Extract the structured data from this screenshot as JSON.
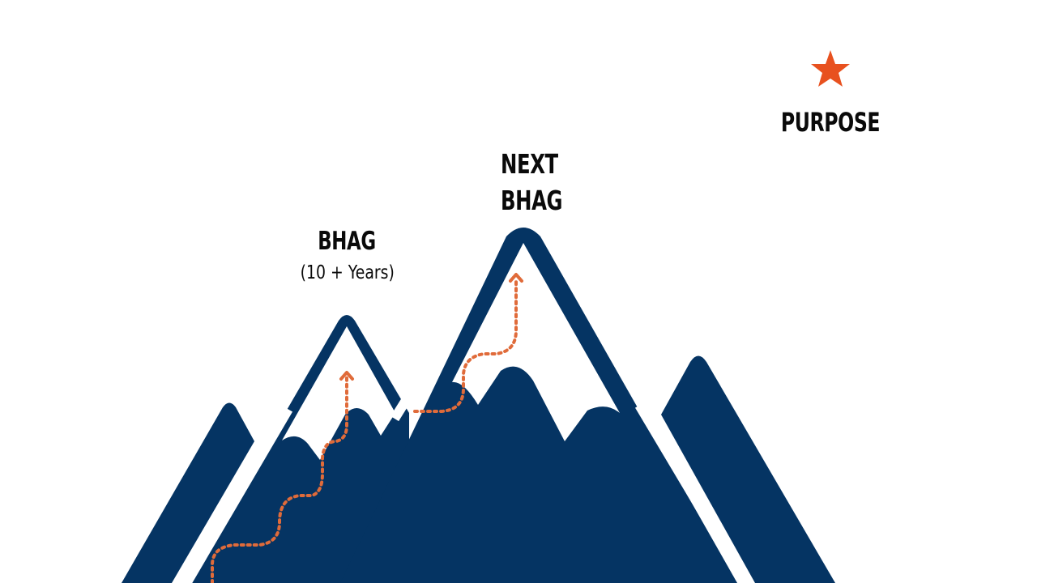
{
  "labels": {
    "bhag_title": "BHAG",
    "bhag_subtitle": "(10 + Years)",
    "next_bhag_line1": "NEXT",
    "next_bhag_line2": "BHAG",
    "purpose": "PURPOSE"
  },
  "colors": {
    "mountain": "#053463",
    "path": "#e06b3a",
    "star": "#e8511f",
    "text": "#0a0a0a",
    "background": "#ffffff"
  },
  "icons": {
    "purpose_marker": "star-icon",
    "path_arrow": "arrow-up-icon"
  }
}
